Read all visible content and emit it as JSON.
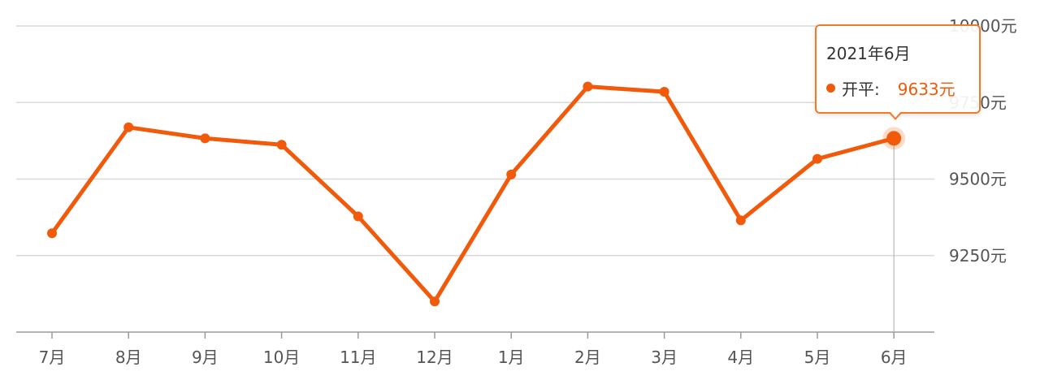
{
  "chart_data": {
    "type": "line",
    "categories": [
      "7月",
      "8月",
      "9月",
      "10月",
      "11月",
      "12月",
      "1月",
      "2月",
      "3月",
      "4月",
      "5月",
      "6月"
    ],
    "series": [
      {
        "name": "开平",
        "values": [
          9323,
          9669,
          9633,
          9612,
          9378,
          9100,
          9515,
          9802,
          9785,
          9365,
          9566,
          9633
        ]
      }
    ],
    "yticks": [
      {
        "value": 9250,
        "label": "9250元"
      },
      {
        "value": 9500,
        "label": "9500元"
      },
      {
        "value": 9750,
        "label": "9750元"
      },
      {
        "value": 10000,
        "label": "10000元"
      }
    ],
    "ylim": [
      9000,
      10000
    ],
    "grid": true,
    "line_color": "#f05a0a",
    "tooltip": {
      "title": "2021年6月",
      "series_name": "开平:",
      "value": "9633元",
      "highlighted_index": 11
    }
  }
}
